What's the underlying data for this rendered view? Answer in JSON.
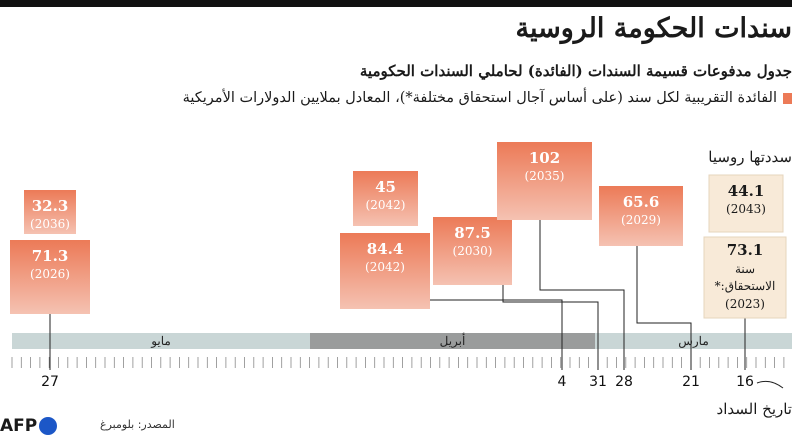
{
  "title": "سندات الحكومة الروسية",
  "subtitle": "جدول مدفوعات قسيمة السندات (الفائدة) لحاملي السندات الحكومية",
  "legend_text": "الفائدة التقريبية لكل سند (على أساس آجال استحقاق مختلفة*)، المعادل بملايين الدولارات الأمريكية",
  "repaid_label": "سددتها روسيا",
  "payment_date_label": "تاريخ السداد",
  "source": "المصدر: بلومبرغ",
  "logo_text": "AFP",
  "colors": {
    "accent_top": "#ec7a57",
    "accent_bottom": "#f5c2b2",
    "repaid_fill": "#f8ead8",
    "timeline": "#c9d6d6",
    "april_band": "#9a9c9c"
  },
  "chart_data": {
    "type": "timeline",
    "months": [
      {
        "name": "مايو",
        "shade": "light"
      },
      {
        "name": "أبريل",
        "shade": "dark"
      },
      {
        "name": "مارس",
        "shade": "light"
      }
    ],
    "tick_labels": [
      "27",
      "4",
      "31",
      "28",
      "21",
      "16"
    ],
    "payments": [
      {
        "value": "71.3",
        "year": "(2026)",
        "date": "27",
        "status": "pending"
      },
      {
        "value": "32.3",
        "year": "(2036)",
        "date": "27",
        "status": "pending"
      },
      {
        "value": "84.4",
        "year": "(2042)",
        "date": "4",
        "status": "pending"
      },
      {
        "value": "45",
        "year": "(2042)",
        "date": "4",
        "status": "pending"
      },
      {
        "value": "87.5",
        "year": "(2030)",
        "date": "31",
        "status": "pending"
      },
      {
        "value": "102",
        "year": "(2035)",
        "date": "28",
        "status": "pending"
      },
      {
        "value": "65.6",
        "year": "(2029)",
        "date": "21",
        "status": "pending"
      },
      {
        "value": "44.1",
        "year": "(2043)",
        "date": "16",
        "status": "repaid"
      },
      {
        "value": "73.1",
        "year": "(2023)",
        "year_note": "سنة الاستحقاق:*",
        "date": "16",
        "status": "repaid"
      }
    ]
  }
}
